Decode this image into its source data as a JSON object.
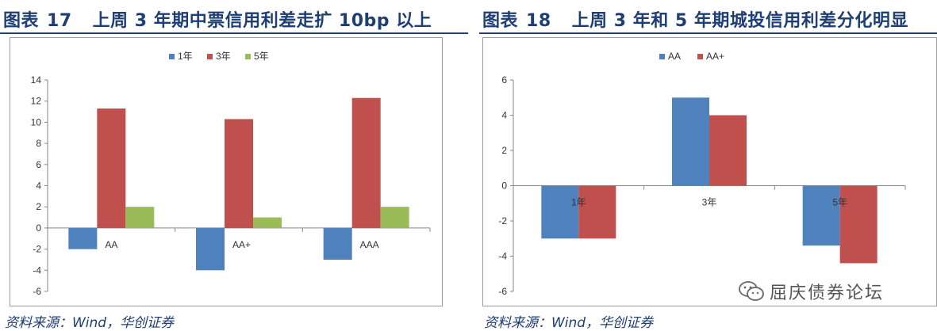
{
  "left": {
    "title_prefix": "图表",
    "title_num": "17",
    "title_text": "上周 3 年期中票信用利差走扩 10bp 以上",
    "source": "资料来源：Wind，华创证券"
  },
  "right": {
    "title_prefix": "图表",
    "title_num": "18",
    "title_text": "上周 3 年和 5 年期城投信用利差分化明显",
    "source": "资料来源：Wind，华创证券",
    "watermark": "屈庆债券论坛"
  },
  "chart_data": [
    {
      "type": "bar",
      "categories": [
        "AA",
        "AA+",
        "AAA"
      ],
      "series": [
        {
          "name": "1年",
          "color": "#4f81bd",
          "values": [
            -2,
            -4,
            -3
          ]
        },
        {
          "name": "3年",
          "color": "#c0504d",
          "values": [
            11.3,
            10.3,
            12.3
          ]
        },
        {
          "name": "5年",
          "color": "#9bbb59",
          "values": [
            2,
            1,
            2
          ]
        }
      ],
      "ylim": [
        -6,
        14
      ],
      "yticks": [
        -6,
        -4,
        -2,
        0,
        2,
        4,
        6,
        8,
        10,
        12,
        14
      ],
      "legend": "top-center",
      "grid": false
    },
    {
      "type": "bar",
      "categories": [
        "1年",
        "3年",
        "5年"
      ],
      "series": [
        {
          "name": "AA",
          "color": "#4f81bd",
          "values": [
            -3,
            5,
            -3.4
          ]
        },
        {
          "name": "AA+",
          "color": "#c0504d",
          "values": [
            -3,
            4,
            -4.4
          ]
        }
      ],
      "ylim": [
        -6,
        6
      ],
      "yticks": [
        -6,
        -4,
        -2,
        0,
        2,
        4,
        6
      ],
      "legend": "top-center",
      "grid": false
    }
  ]
}
